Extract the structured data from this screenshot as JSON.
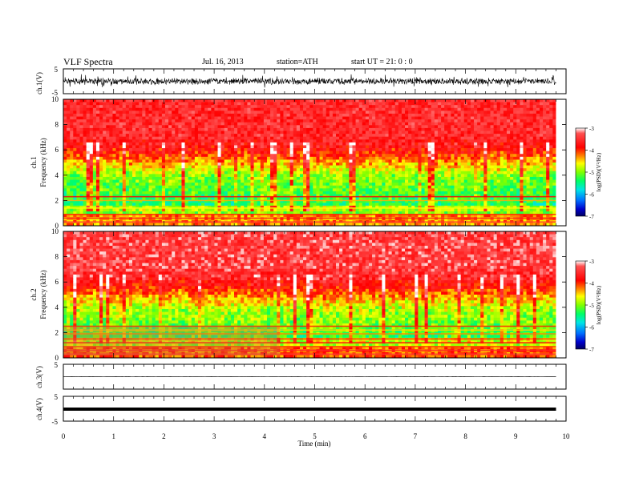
{
  "header": {
    "title": "VLF  Spectra",
    "date": "Jul.  16,  2013",
    "station": "station=ATH",
    "start": "start  UT  =    21: 0  : 0"
  },
  "chart_data": [
    {
      "id": "ch1-waveform",
      "type": "line",
      "ylabel": "ch.1(V)",
      "ylim": [
        -5,
        5
      ],
      "yticks": [
        5,
        -5
      ],
      "xlim": [
        0,
        10
      ],
      "data_extent_min": 9.8,
      "signal": "dense noise-like waveform, amplitude approx ±2.5 V"
    },
    {
      "id": "ch1-spectrogram",
      "type": "heatmap",
      "ylabel": "ch.1\nFrequency  (kHz)",
      "ylim": [
        0,
        10
      ],
      "yticks": [
        0,
        2,
        4,
        6,
        8,
        10
      ],
      "xlim": [
        0,
        10
      ],
      "data_extent_min": 9.8,
      "colorbar": {
        "label": "log(PSD)(V²/Hz)",
        "range": [
          -7,
          -3
        ],
        "ticks": [
          -3,
          -4,
          -5,
          -6,
          -7
        ]
      },
      "description_levels": {
        "above_6.5kHz": -3.6,
        "4_to_6kHz": -4.6,
        "1.5_to_4kHz": -5.5,
        "below_1kHz": -4.2
      }
    },
    {
      "id": "ch2-spectrogram",
      "type": "heatmap",
      "ylabel": "ch.2\nFrequency  (kHz)",
      "ylim": [
        0,
        10
      ],
      "yticks": [
        0,
        2,
        4,
        6,
        8,
        10
      ],
      "xlim": [
        0,
        10
      ],
      "data_extent_min": 9.8,
      "band_change_min": 4.3,
      "colorbar": {
        "label": "log(PSD)(V²/Hz)",
        "range": [
          -7,
          -3
        ],
        "ticks": [
          -3,
          -4,
          -5,
          -6,
          -7
        ]
      }
    },
    {
      "id": "ch3-waveform",
      "type": "line",
      "ylabel": "ch.3(V)",
      "ylim": [
        -5,
        5
      ],
      "yticks": [
        5,
        -5
      ],
      "xlim": [
        0,
        10
      ],
      "signal": "near-constant approx 0 V"
    },
    {
      "id": "ch4-waveform",
      "type": "line",
      "ylabel": "ch.4(V)",
      "ylim": [
        -5,
        5
      ],
      "yticks": [
        5,
        -5
      ],
      "xlim": [
        0,
        10
      ],
      "signal": "thick constant band approx 0 V"
    }
  ],
  "xaxis": {
    "label": "Time  (min)",
    "ticks": [
      "0",
      "1",
      "2",
      "3",
      "4",
      "5",
      "6",
      "7",
      "8",
      "9",
      "10"
    ]
  },
  "colors": {
    "axis": "#000000",
    "colormap": [
      "#ffffff",
      "#ff2a2a",
      "#ff0000",
      "#ff8800",
      "#ffff00",
      "#a0ff00",
      "#00ff66",
      "#00e5e5",
      "#0070ff",
      "#0000cc",
      "#000080"
    ]
  }
}
